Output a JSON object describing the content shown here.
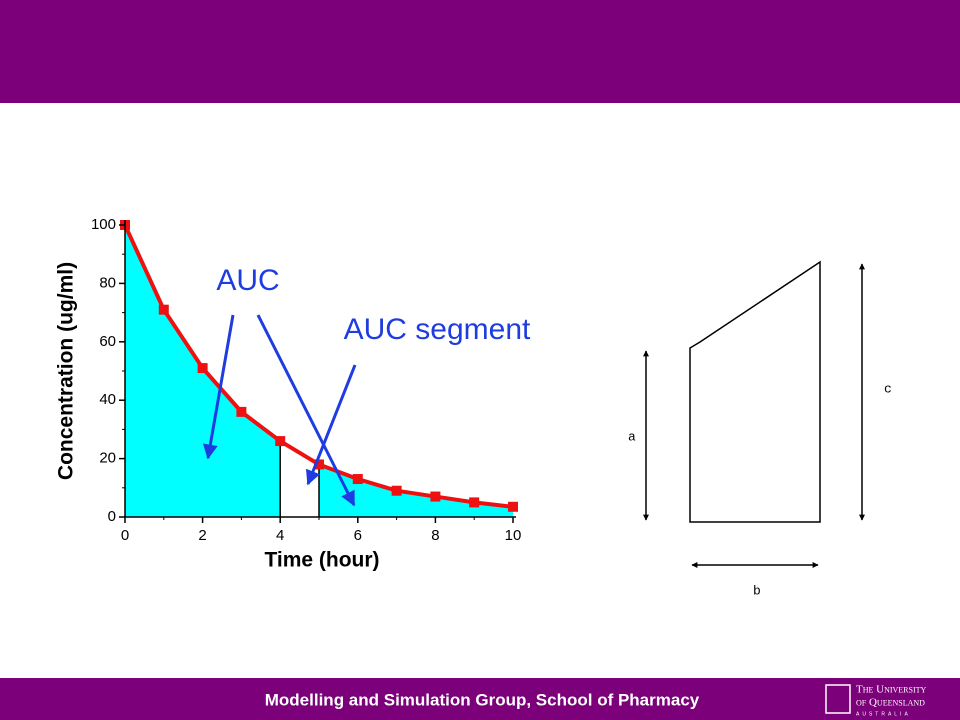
{
  "chart_data": {
    "type": "line",
    "x": [
      0,
      1,
      2,
      3,
      4,
      5,
      6,
      7,
      8,
      9,
      10
    ],
    "values": [
      100,
      71,
      51,
      36,
      26,
      18,
      13,
      9,
      7,
      5,
      3.5
    ],
    "color": "#ee1111",
    "area_color": "#00ffff",
    "highlight_segment": [
      4,
      5
    ],
    "xlim": [
      0,
      10
    ],
    "xticks": [
      0,
      2,
      4,
      6,
      8,
      10
    ],
    "ylim": [
      0,
      100
    ],
    "yticks": [
      0,
      20,
      40,
      60,
      80,
      100
    ],
    "xlabel": "Time (hour)",
    "ylabel": "Concentration (ug/ml)",
    "annotations": [
      "AUC",
      "AUC segment"
    ]
  },
  "diagram": {
    "labels": [
      "a",
      "b",
      "c"
    ]
  },
  "footer": {
    "text": "Modelling and Simulation Group, School of Pharmacy",
    "logo": [
      "The University",
      "of Queensland",
      "AUSTRALIA"
    ]
  }
}
